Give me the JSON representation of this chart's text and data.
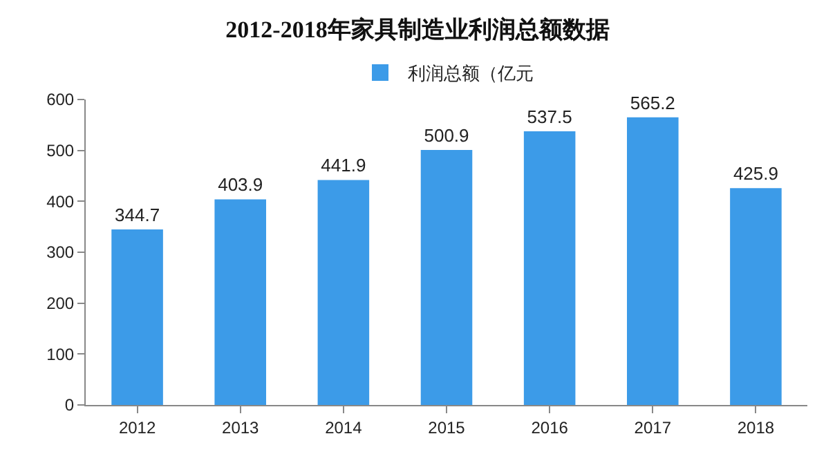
{
  "chart_data": {
    "type": "bar",
    "title": "2012-2018年家具制造业利润总额数据",
    "categories": [
      "2012",
      "2013",
      "2014",
      "2015",
      "2016",
      "2017",
      "2018"
    ],
    "series": [
      {
        "name": "利润总额（亿元",
        "color": "#3c9be8",
        "values": [
          344.7,
          403.9,
          441.9,
          500.9,
          537.5,
          565.2,
          425.9
        ]
      }
    ],
    "ylim": [
      0,
      600
    ],
    "yticks": [
      0,
      100,
      200,
      300,
      400,
      500,
      600
    ],
    "grid": false,
    "legend": "top",
    "data_labels": true
  }
}
